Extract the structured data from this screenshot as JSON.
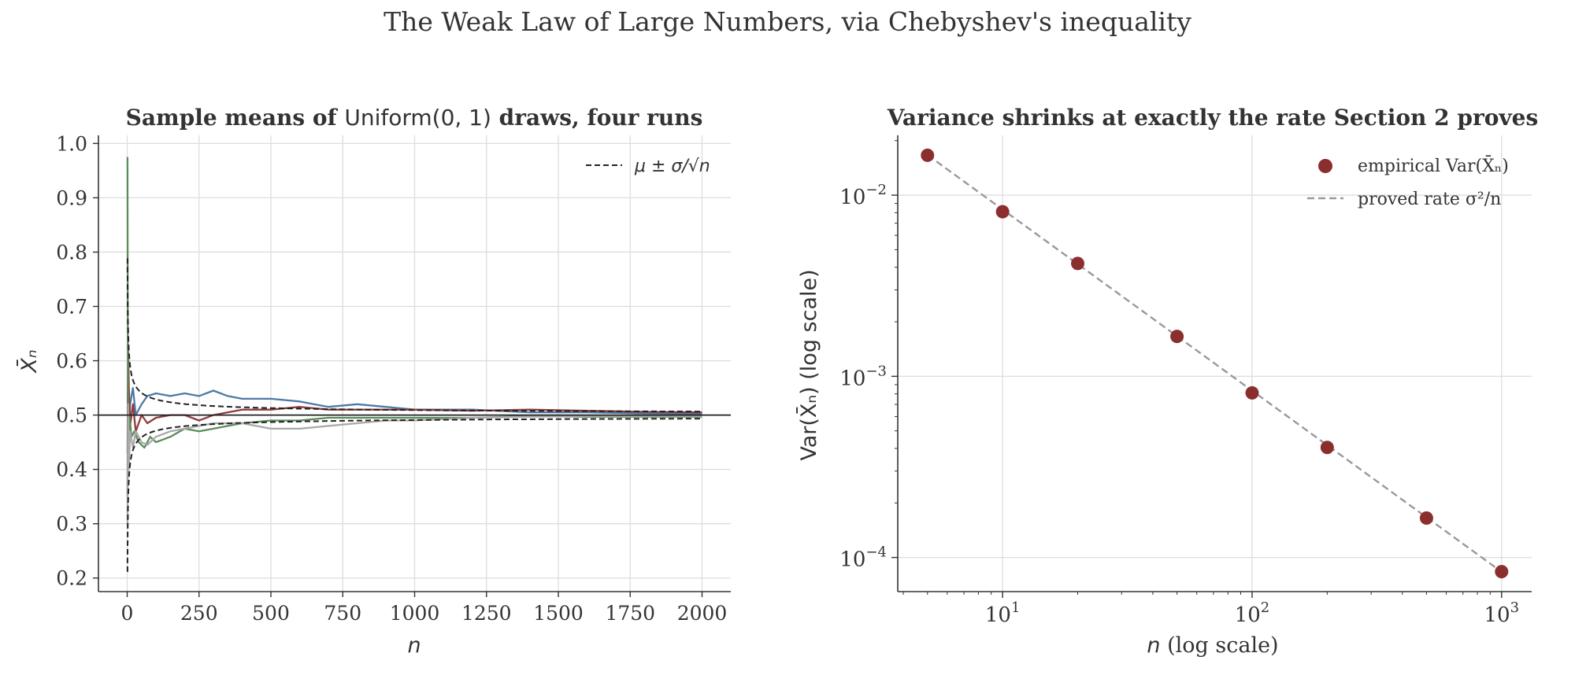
{
  "figure": {
    "suptitle": "The Weak Law of Large Numbers, via Chebyshev's inequality"
  },
  "chart_data": [
    {
      "type": "line",
      "title_bold_1": "Sample means of ",
      "title_math": "Uniform(0, 1)",
      "title_bold_2": " draws, four runs",
      "xlabel": "n",
      "ylabel": "X̄ₙ",
      "xlim": [
        -100,
        2100
      ],
      "ylim": [
        0.175,
        1.015
      ],
      "xticks": [
        0,
        250,
        500,
        750,
        1000,
        1250,
        1500,
        1750,
        2000
      ],
      "xtick_labels": [
        "0",
        "250",
        "500",
        "750",
        "1000",
        "1250",
        "1500",
        "1750",
        "2000"
      ],
      "yticks": [
        0.2,
        0.3,
        0.4,
        0.5,
        0.6,
        0.7,
        0.8,
        0.9,
        1.0
      ],
      "ytick_labels": [
        "0.2",
        "0.3",
        "0.4",
        "0.5",
        "0.6",
        "0.7",
        "0.8",
        "0.9",
        "1.0"
      ],
      "grid": true,
      "mu": 0.5,
      "sigma": 0.2887,
      "reference_line": 0.5,
      "legend": {
        "position": "top-right",
        "entries": [
          {
            "label": "μ ± σ/√n",
            "style": "black-dashed"
          }
        ]
      },
      "series": [
        {
          "color": "#4e79a7",
          "x": [
            1,
            3,
            6,
            10,
            20,
            30,
            50,
            70,
            100,
            150,
            200,
            250,
            300,
            350,
            400,
            500,
            600,
            700,
            800,
            900,
            1000,
            1200,
            1400,
            1600,
            1800,
            2000
          ],
          "y": [
            0.43,
            0.58,
            0.46,
            0.52,
            0.55,
            0.5,
            0.52,
            0.535,
            0.54,
            0.535,
            0.54,
            0.535,
            0.545,
            0.535,
            0.53,
            0.53,
            0.525,
            0.515,
            0.52,
            0.515,
            0.51,
            0.51,
            0.505,
            0.505,
            0.503,
            0.502
          ]
        },
        {
          "color": "#8f3b3b",
          "x": [
            1,
            3,
            6,
            10,
            20,
            30,
            50,
            70,
            100,
            150,
            200,
            250,
            300,
            350,
            400,
            500,
            600,
            700,
            800,
            900,
            1000,
            1200,
            1400,
            1600,
            1800,
            2000
          ],
          "y": [
            0.35,
            0.63,
            0.55,
            0.48,
            0.52,
            0.47,
            0.5,
            0.485,
            0.495,
            0.5,
            0.5,
            0.49,
            0.5,
            0.505,
            0.51,
            0.51,
            0.515,
            0.51,
            0.51,
            0.51,
            0.51,
            0.508,
            0.51,
            0.508,
            0.506,
            0.505
          ]
        },
        {
          "color": "#5b8c5a",
          "x": [
            1,
            2,
            4,
            8,
            15,
            25,
            40,
            60,
            80,
            100,
            150,
            200,
            250,
            300,
            350,
            400,
            500,
            600,
            700,
            800,
            900,
            1000,
            1200,
            1400,
            1600,
            1800,
            2000
          ],
          "y": [
            0.975,
            0.7,
            0.42,
            0.5,
            0.46,
            0.47,
            0.45,
            0.44,
            0.46,
            0.45,
            0.46,
            0.475,
            0.47,
            0.475,
            0.48,
            0.485,
            0.49,
            0.49,
            0.495,
            0.495,
            0.495,
            0.495,
            0.495,
            0.498,
            0.497,
            0.497,
            0.497
          ]
        },
        {
          "color": "#a9a9a9",
          "x": [
            1,
            3,
            6,
            10,
            20,
            30,
            50,
            70,
            100,
            150,
            200,
            250,
            300,
            350,
            400,
            500,
            600,
            700,
            800,
            900,
            1000,
            1200,
            1400,
            1600,
            1800,
            2000
          ],
          "y": [
            0.3,
            0.52,
            0.4,
            0.47,
            0.44,
            0.47,
            0.45,
            0.445,
            0.46,
            0.47,
            0.475,
            0.48,
            0.485,
            0.485,
            0.485,
            0.475,
            0.475,
            0.48,
            0.485,
            0.49,
            0.49,
            0.495,
            0.497,
            0.498,
            0.498,
            0.498
          ]
        }
      ]
    },
    {
      "type": "scatter",
      "title": "Variance shrinks at exactly the rate Section 2 proves",
      "xlabel_math": "n",
      "xlabel_text": " (log scale)",
      "ylabel": "Var(X̄ₙ) (log scale)",
      "xscale": "log",
      "yscale": "log",
      "xlim": [
        3.8,
        1320
      ],
      "ylim": [
        6.48e-05,
        0.0214
      ],
      "xticks": [
        10,
        100,
        1000
      ],
      "xtick_labels": [
        {
          "base": "10",
          "exp": "1"
        },
        {
          "base": "10",
          "exp": "2"
        },
        {
          "base": "10",
          "exp": "3"
        }
      ],
      "yticks": [
        0.0001,
        0.001,
        0.01
      ],
      "ytick_labels": [
        {
          "base": "10",
          "exp": "−4"
        },
        {
          "base": "10",
          "exp": "−3"
        },
        {
          "base": "10",
          "exp": "−2"
        }
      ],
      "grid": true,
      "legend": {
        "position": "top-right",
        "entries": [
          {
            "label": "empirical Var(X̄ₙ)",
            "style": "dot",
            "color": "#8b2e2e"
          },
          {
            "label": "proved rate σ²/n",
            "style": "gray-dashed",
            "color": "#999999"
          }
        ]
      },
      "points": {
        "x": [
          5,
          10,
          20,
          50,
          100,
          200,
          500,
          1000
        ],
        "y": [
          0.0166,
          0.0081,
          0.0042,
          0.00166,
          0.00081,
          0.000405,
          0.000165,
          8.35e-05
        ]
      },
      "proved_rate": {
        "x": [
          5,
          1000
        ],
        "y": [
          0.01667,
          8.33e-05
        ]
      }
    }
  ]
}
